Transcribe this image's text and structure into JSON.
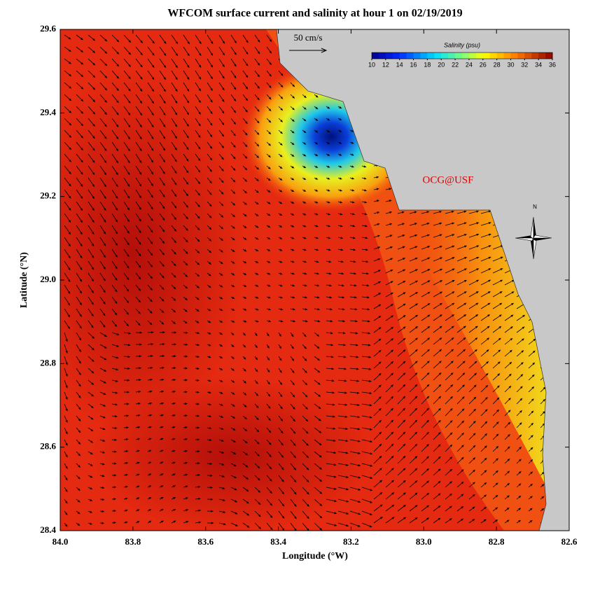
{
  "chart_data": {
    "type": "map",
    "title": "WFCOM surface current and salinity at hour 1 on 02/19/2019",
    "x_label": "Longitude (°W)",
    "y_label": "Latitude (°N)",
    "xlim": [
      84.0,
      82.6
    ],
    "ylim": [
      28.4,
      29.6
    ],
    "xticks": [
      {
        "value": 84.0,
        "label": "84.0"
      },
      83.8,
      83.6,
      83.4,
      83.2,
      {
        "value": 83.0,
        "label": "83.0"
      },
      82.8,
      82.6
    ],
    "yticks": [
      28.4,
      28.6,
      28.8,
      {
        "value": 29.0,
        "label": "29.0"
      },
      29.2,
      29.4,
      29.6
    ],
    "colorbar": {
      "title": "Salinity (psu)",
      "lim": [
        10,
        36
      ],
      "ticks": [
        10,
        12,
        14,
        16,
        18,
        20,
        22,
        24,
        26,
        28,
        30,
        32,
        34,
        36
      ]
    },
    "scale_label": "50 cm/s",
    "credit": "OCG@USF",
    "north_label": "N"
  }
}
